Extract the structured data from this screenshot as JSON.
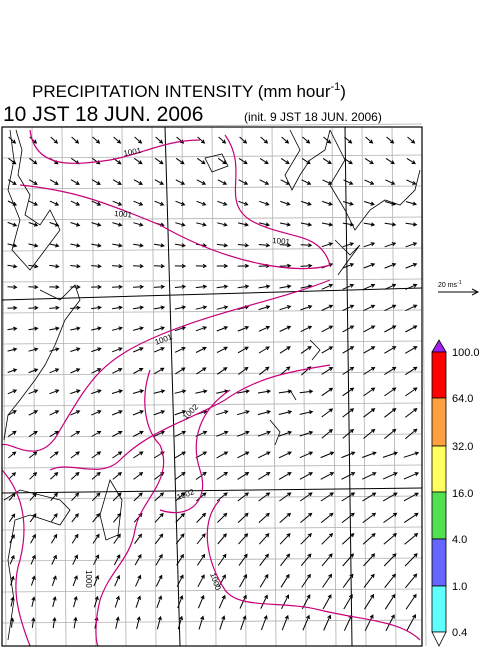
{
  "header": {
    "title": "PRECIPITATION INTENSITY (mm hour",
    "title_sup": "-1",
    "title_end": ")",
    "valid_time": "10 JST 18 JUN. 2006",
    "init_time": "(init. 9 JST 18 JUN. 2006)"
  },
  "reference_vector": {
    "label": "20 ms",
    "label_sup": "-1"
  },
  "isobar_labels": [
    "1001",
    "1001",
    "1001",
    "1001",
    "1002",
    "1002",
    "1000",
    "1000"
  ],
  "colorbar": {
    "labels": [
      "100.0",
      "64.0",
      "32.0",
      "16.0",
      "4.0",
      "1.0",
      "0.4"
    ]
  }
}
